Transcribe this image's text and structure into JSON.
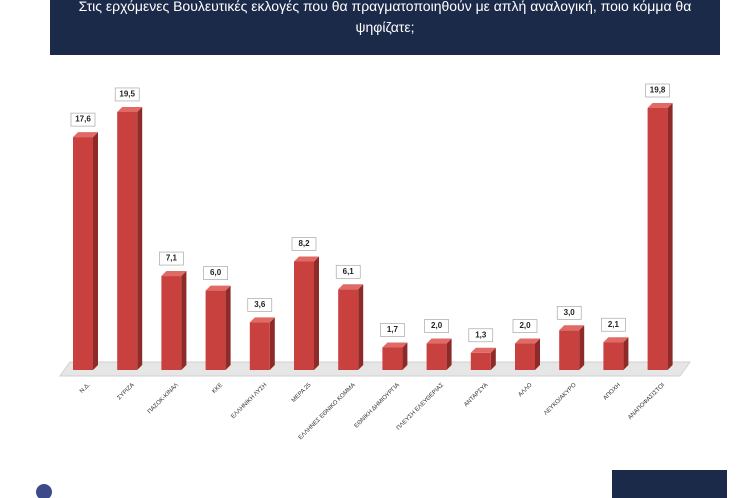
{
  "chart_data": {
    "type": "bar",
    "title": "Στις ερχόμενες Βουλευτικές εκλογές που θα πραγματοποιηθούν με απλή αναλογική, ποιο κόμμα θα ψηφίζατε;",
    "categories": [
      "Ν.Δ.",
      "ΣΥΡΙΖΑ",
      "ΠΑΣΟΚ-ΚΙΝΑΛ",
      "ΚΚΕ",
      "ΕΛΛΗΝΙΚΗ ΛΥΣΗ",
      "ΜΕΡΑ 25",
      "ΕΛΛΗΝΕΣ ΕΘΝΙΚΟ ΚΟΜΜΑ",
      "ΕΘΝΙΚΗ ΔΗΜΙΟΥΡΓΙΑ",
      "ΠΛΕΥΣΗ ΕΛΕΥΘΕΡΙΑΣ",
      "ΑΝΤΑΡΣΥΑ",
      "ΑΛΛΟ",
      "ΛΕΥΚΟ/ΑΚΥΡΟ",
      "ΑΠΟΧΗ",
      "ΑΝΑΠΟΦΑΣΙΣΤΟΙ"
    ],
    "values": [
      17.6,
      19.5,
      7.1,
      6.0,
      3.6,
      8.2,
      6.1,
      1.7,
      2.0,
      1.3,
      2.0,
      3.0,
      2.1,
      19.8
    ],
    "value_labels": [
      "17,6",
      "19,5",
      "7,1",
      "6,0",
      "3,6",
      "8,2",
      "6,1",
      "1,7",
      "2,0",
      "1,3",
      "2,0",
      "3,0",
      "2,1",
      "19,8"
    ],
    "color": "#c8413f"
  }
}
